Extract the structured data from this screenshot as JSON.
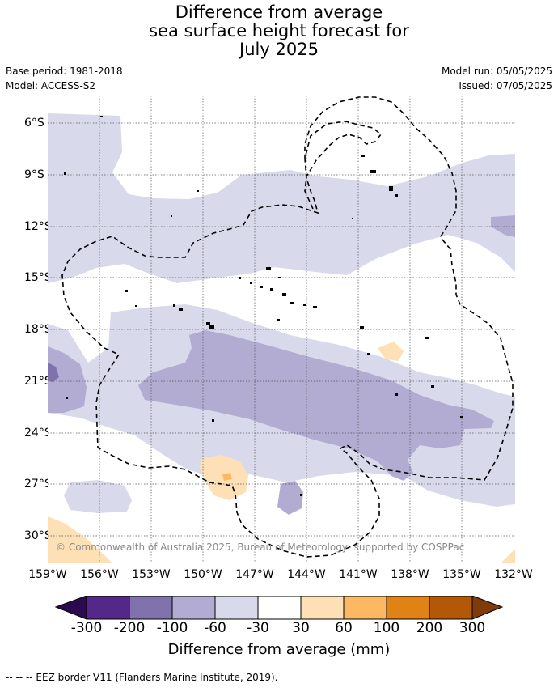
{
  "title": {
    "line1": "Difference from average",
    "line2": "sea surface height forecast for",
    "line3": "July 2025"
  },
  "meta": {
    "base_period": "Base period: 1981-2018",
    "model": "Model: ACCESS-S2",
    "model_run": "Model run: 05/05/2025",
    "issued": "Issued: 07/05/2025"
  },
  "lat_labels": [
    "6°S",
    "9°S",
    "12°S",
    "15°S",
    "18°S",
    "21°S",
    "24°S",
    "27°S",
    "30°S"
  ],
  "lon_labels": [
    "159°W",
    "156°W",
    "153°W",
    "150°W",
    "147°W",
    "144°W",
    "141°W",
    "138°W",
    "135°W",
    "132°W"
  ],
  "copyright": "© Commonwealth of Australia 2025, Bureau of Meteorology, supported by COSPPac",
  "colorbar": {
    "title": "Difference from average (mm)",
    "ticks": [
      "-300",
      "-200",
      "-100",
      "-60",
      "-30",
      "30",
      "60",
      "100",
      "200",
      "300"
    ],
    "colors": {
      "lt_-300": "#2d0a4e",
      "-300_-200": "#542788",
      "-200_-100": "#8073ac",
      "-100_-60": "#b2abd2",
      "-60_-30": "#d8daeb",
      "-30_30": "#ffffff",
      "30_60": "#fee0b6",
      "60_100": "#fdb863",
      "100_200": "#e08214",
      "200_300": "#b35806",
      "gt_300": "#7f3b08"
    }
  },
  "footnote": "--  --  -- EEZ border V11 (Flanders Marine Institute, 2019)."
}
